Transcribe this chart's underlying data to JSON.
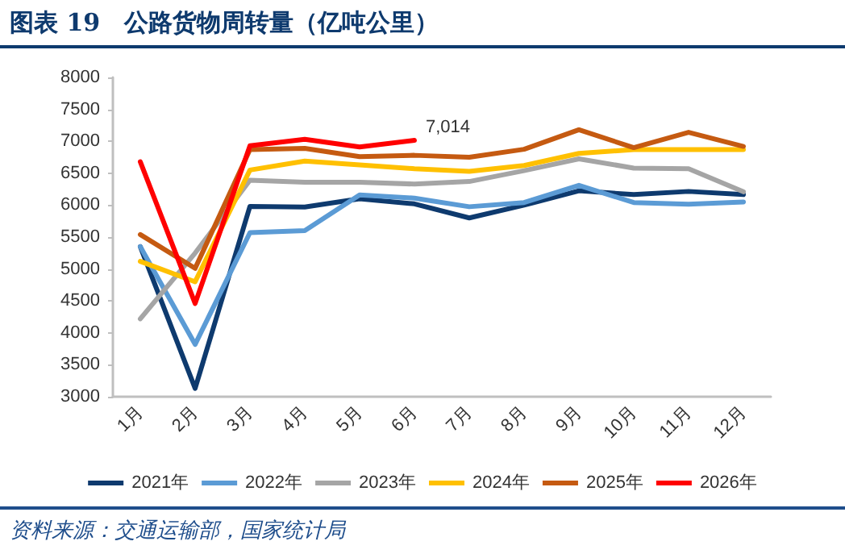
{
  "chart_data": {
    "type": "line",
    "title": "图表 19　公路货物周转量（亿吨公里）",
    "categories": [
      "1月",
      "2月",
      "3月",
      "4月",
      "5月",
      "6月",
      "7月",
      "8月",
      "9月",
      "10月",
      "11月",
      "12月"
    ],
    "series": [
      {
        "name": "2021年",
        "color": "#0e3a6e",
        "values": [
          5350,
          3130,
          5980,
          5970,
          6100,
          6020,
          5800,
          6000,
          6225,
          6165,
          6215,
          6165
        ]
      },
      {
        "name": "2022年",
        "color": "#5b9bd5",
        "values": [
          5350,
          3820,
          5570,
          5600,
          6160,
          6110,
          5975,
          6040,
          6310,
          6040,
          6015,
          6050
        ]
      },
      {
        "name": "2023年",
        "color": "#a5a5a5",
        "values": [
          4220,
          5250,
          6390,
          6360,
          6360,
          6330,
          6370,
          6540,
          6725,
          6580,
          6570,
          6210
        ]
      },
      {
        "name": "2024年",
        "color": "#ffc000",
        "values": [
          5120,
          4800,
          6550,
          6690,
          6630,
          6570,
          6530,
          6620,
          6810,
          6870,
          6870,
          6870
        ]
      },
      {
        "name": "2025年",
        "color": "#c55a11",
        "values": [
          5540,
          5010,
          6870,
          6890,
          6760,
          6780,
          6750,
          6875,
          7180,
          6900,
          7140,
          6920
        ]
      },
      {
        "name": "2026年",
        "color": "#ff0000",
        "values": [
          6680,
          4460,
          6930,
          7030,
          6910,
          7014,
          null,
          null,
          null,
          null,
          null,
          null
        ],
        "value_labels": [
          null,
          null,
          null,
          null,
          null,
          "7,014",
          null,
          null,
          null,
          null,
          null,
          null
        ]
      }
    ],
    "ylim": [
      3000,
      8000
    ],
    "yticks": [
      3000,
      3500,
      4000,
      4500,
      5000,
      5500,
      6000,
      6500,
      7000,
      7500,
      8000
    ],
    "grid": false,
    "legend": "bottom",
    "marker": "none",
    "line_style": "solid",
    "annotations": [
      "资料来源：交通运输部，国家统计局"
    ]
  }
}
